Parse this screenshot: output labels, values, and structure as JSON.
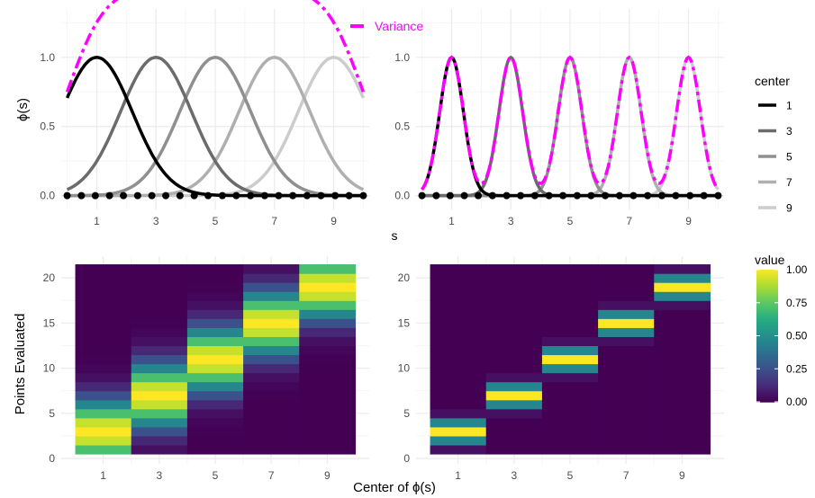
{
  "labels": {
    "top_ylabel": "ϕ(s)",
    "top_xlabel": "s",
    "bottom_ylabel": "Points Evaluated",
    "bottom_xlabel": "Center of ϕ(s)",
    "variance_legend": "Variance",
    "center_legend_title": "center",
    "value_legend_title": "value"
  },
  "center_legend_items": [
    {
      "label": "1",
      "color": "#000000"
    },
    {
      "label": "3",
      "color": "#6b6b6b"
    },
    {
      "label": "5",
      "color": "#8f8f8f"
    },
    {
      "label": "7",
      "color": "#afafaf"
    },
    {
      "label": "9",
      "color": "#cccccc"
    }
  ],
  "value_legend_ticks": [
    "1.00",
    "0.75",
    "0.50",
    "0.25",
    "0.00"
  ],
  "chart_data": [
    {
      "type": "line",
      "panel": "top-left",
      "centers": [
        1,
        3,
        5,
        7,
        9
      ],
      "center_colors": [
        "#000000",
        "#6b6b6b",
        "#8f8f8f",
        "#afafaf",
        "#cccccc"
      ],
      "bandwidth_sigma": 1.2,
      "x_range": [
        0,
        10
      ],
      "xlim": [
        -0.2,
        10.2
      ],
      "ylim": [
        -0.1,
        1.35
      ],
      "xticks": [
        "1",
        "3",
        "5",
        "7",
        "9"
      ],
      "yticks": [
        "0.0",
        "0.5",
        "1.0"
      ],
      "ytick_values": [
        0,
        0.5,
        1
      ],
      "points_evaluated_x": [
        0,
        0.48,
        0.95,
        1.43,
        1.9,
        2.38,
        2.86,
        3.33,
        3.81,
        4.29,
        4.76,
        5.24,
        5.71,
        6.19,
        6.67,
        7.14,
        7.62,
        8.1,
        8.57,
        9.05,
        9.52,
        10
      ],
      "variance_color": "#ff00ff",
      "variance_label": "Variance"
    },
    {
      "type": "line",
      "panel": "top-right",
      "centers": [
        1,
        3,
        5,
        7,
        9
      ],
      "center_colors": [
        "#000000",
        "#6b6b6b",
        "#8f8f8f",
        "#afafaf",
        "#cccccc"
      ],
      "bandwidth_sigma": 0.4,
      "x_range": [
        0,
        10
      ],
      "xlim": [
        -0.2,
        10.2
      ],
      "ylim": [
        -0.1,
        1.35
      ],
      "xticks": [
        "1",
        "3",
        "5",
        "7",
        "9"
      ],
      "yticks": [
        "0.0",
        "0.5",
        "1.0"
      ],
      "ytick_values": [
        0,
        0.5,
        1
      ],
      "points_evaluated_x": [
        0,
        0.48,
        0.95,
        1.43,
        1.9,
        2.38,
        2.86,
        3.33,
        3.81,
        4.29,
        4.76,
        5.24,
        5.71,
        6.19,
        6.67,
        7.14,
        7.62,
        8.1,
        8.57,
        9.05,
        9.52,
        10
      ],
      "variance_color": "#ff00ff"
    },
    {
      "type": "heatmap",
      "panel": "bottom-left",
      "x_categories": [
        "1",
        "3",
        "5",
        "7",
        "9"
      ],
      "y_range": [
        1,
        21
      ],
      "yticks": [
        "0",
        "5",
        "10",
        "15",
        "20"
      ],
      "ytick_values": [
        0,
        5,
        10,
        15,
        20
      ],
      "value_range": [
        0,
        1
      ],
      "bandwidth_sigma": 1.2,
      "colorscale": "viridis"
    },
    {
      "type": "heatmap",
      "panel": "bottom-right",
      "x_categories": [
        "1",
        "3",
        "5",
        "7",
        "9"
      ],
      "y_range": [
        1,
        21
      ],
      "yticks": [
        "0",
        "5",
        "10",
        "15",
        "20"
      ],
      "ytick_values": [
        0,
        5,
        10,
        15,
        20
      ],
      "value_range": [
        0,
        1
      ],
      "bandwidth_sigma": 0.4,
      "colorscale": "viridis"
    }
  ]
}
